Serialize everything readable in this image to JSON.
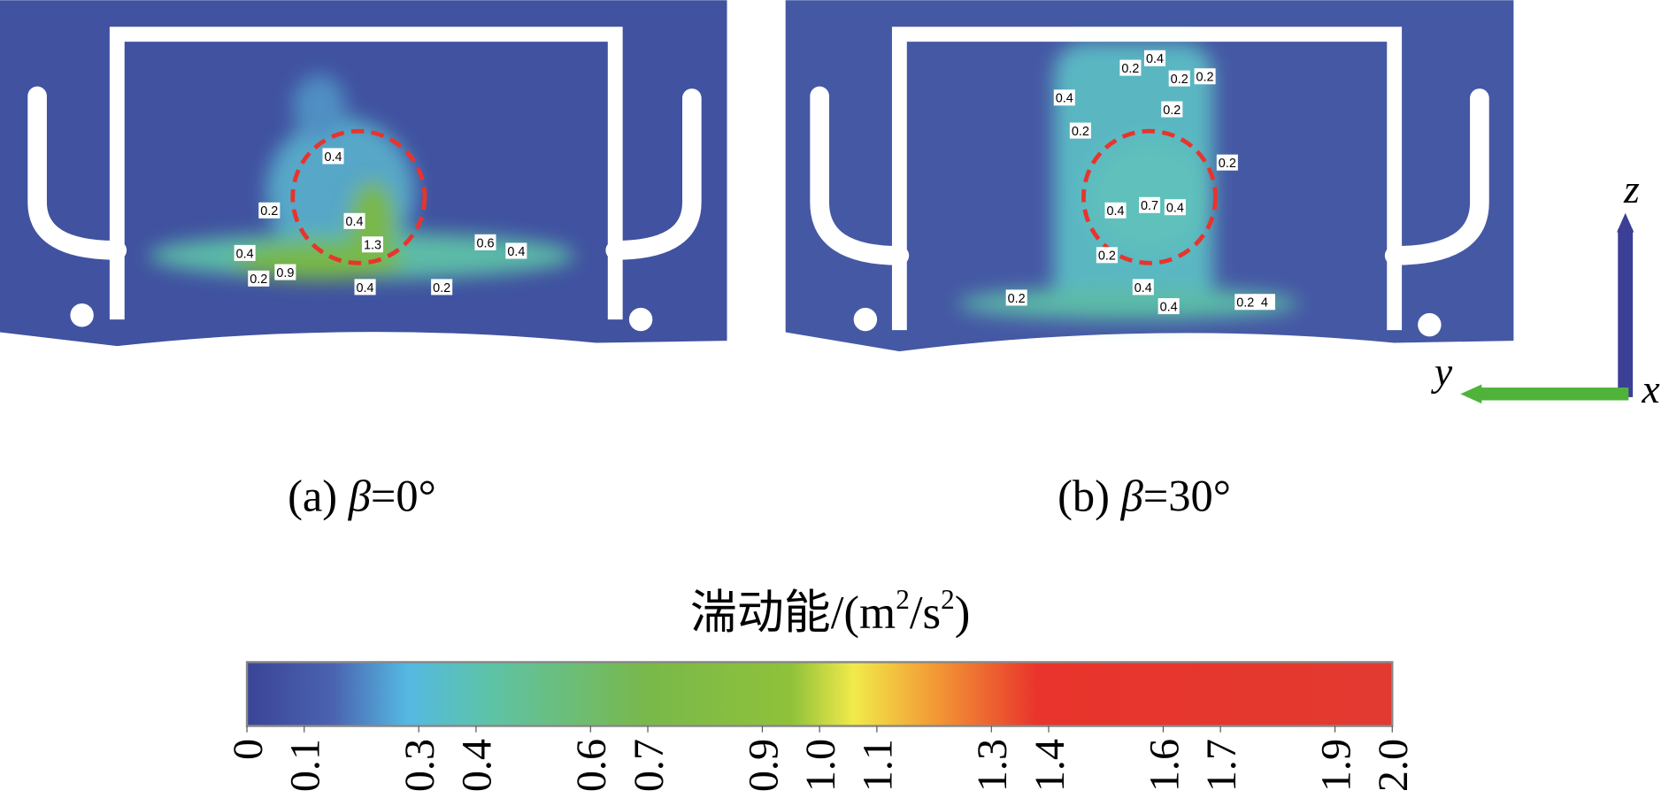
{
  "panels": [
    {
      "caption": {
        "prefix": "(a) ",
        "symbol": "β",
        "suffix": "=0°"
      },
      "contour_labels": [
        "0.4",
        "0.2",
        "0.4",
        "0.4",
        "0.2",
        "0.9",
        "1.3",
        "0.4",
        "0.6",
        "0.4",
        "0.2"
      ]
    },
    {
      "caption": {
        "prefix": "(b) ",
        "symbol": "β",
        "suffix": "=30°"
      },
      "contour_labels": [
        "0.4",
        "0.2",
        "0.2",
        "0.2",
        "0.4",
        "0.2",
        "0.2",
        "0.2",
        "0.7",
        "0.4",
        "0.4",
        "0.2",
        "0.4",
        "0.4",
        "0.2",
        "0.2",
        "4"
      ]
    }
  ],
  "axes_triad": {
    "z": "z",
    "y": "y",
    "x": "x"
  },
  "colorbar": {
    "title": {
      "text": "湍动能/(m",
      "sup1": "2",
      "mid": "/s",
      "sup2": "2",
      "end": ")"
    },
    "lim": [
      0,
      2
    ],
    "ticks": [
      0,
      0.1,
      0.3,
      0.4,
      0.6,
      0.7,
      0.9,
      {
        "value": 1,
        "label": "1.0"
      },
      1.1,
      1.3,
      1.4,
      1.6,
      1.7,
      1.9,
      {
        "value": 2,
        "label": "2.0"
      }
    ],
    "colormap": [
      {
        "value": 0,
        "color": "#3b4497"
      },
      {
        "value": 0.15,
        "color": "#4a63b0"
      },
      {
        "value": 0.28,
        "color": "#55b9e2"
      },
      {
        "value": 0.42,
        "color": "#5dc3a8"
      },
      {
        "value": 0.7,
        "color": "#79b84a"
      },
      {
        "value": 0.95,
        "color": "#8fc23a"
      },
      {
        "value": 1.06,
        "color": "#f1ea4a"
      },
      {
        "value": 1.2,
        "color": "#f29a35"
      },
      {
        "value": 1.38,
        "color": "#e8342c"
      },
      {
        "value": 2,
        "color": "#e23a30"
      }
    ]
  }
}
